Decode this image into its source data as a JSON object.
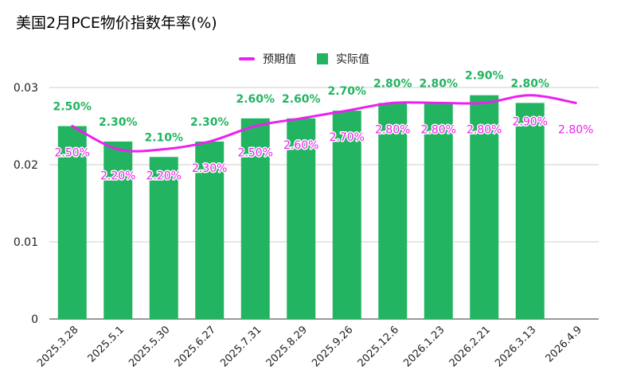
{
  "chart_data": {
    "type": "bar",
    "title": "美国2月PCE物价指数年率(%)",
    "categories": [
      "2025.3.28",
      "2025.5.1",
      "2025.5.30",
      "2025.6.27",
      "2025.7.31",
      "2025.8.29",
      "2025.9.26",
      "2025.12.6",
      "2026.1.23",
      "2026.2.21",
      "2026.3.13",
      "2026.4.9"
    ],
    "series": [
      {
        "name": "实际值",
        "type": "bar",
        "color": "#22b461",
        "values": [
          0.025,
          0.023,
          0.021,
          0.023,
          0.026,
          0.026,
          0.027,
          0.028,
          0.028,
          0.029,
          0.028,
          null
        ],
        "labels": [
          "2.50%",
          "2.30%",
          "2.10%",
          "2.30%",
          "2.60%",
          "2.60%",
          "2.70%",
          "2.80%",
          "2.80%",
          "2.90%",
          "2.80%",
          ""
        ]
      },
      {
        "name": "预期值",
        "type": "line",
        "color": "#ee1ff0",
        "values": [
          0.025,
          0.022,
          0.022,
          0.023,
          0.025,
          0.026,
          0.027,
          0.028,
          0.028,
          0.028,
          0.029,
          0.028
        ],
        "labels": [
          "2.50%",
          "2.20%",
          "2.20%",
          "2.30%",
          "2.50%",
          "2.60%",
          "2.70%",
          "2.80%",
          "2.80%",
          "2.80%",
          "2.90%",
          "2.80%"
        ]
      }
    ],
    "ylim": [
      0,
      0.03
    ],
    "yticks": [
      "0",
      "0.01",
      "0.02",
      "0.03"
    ],
    "xlabel": "",
    "ylabel": "",
    "grid": true,
    "legend": [
      "预期值",
      "实际值"
    ],
    "legend_position": "top-center"
  }
}
